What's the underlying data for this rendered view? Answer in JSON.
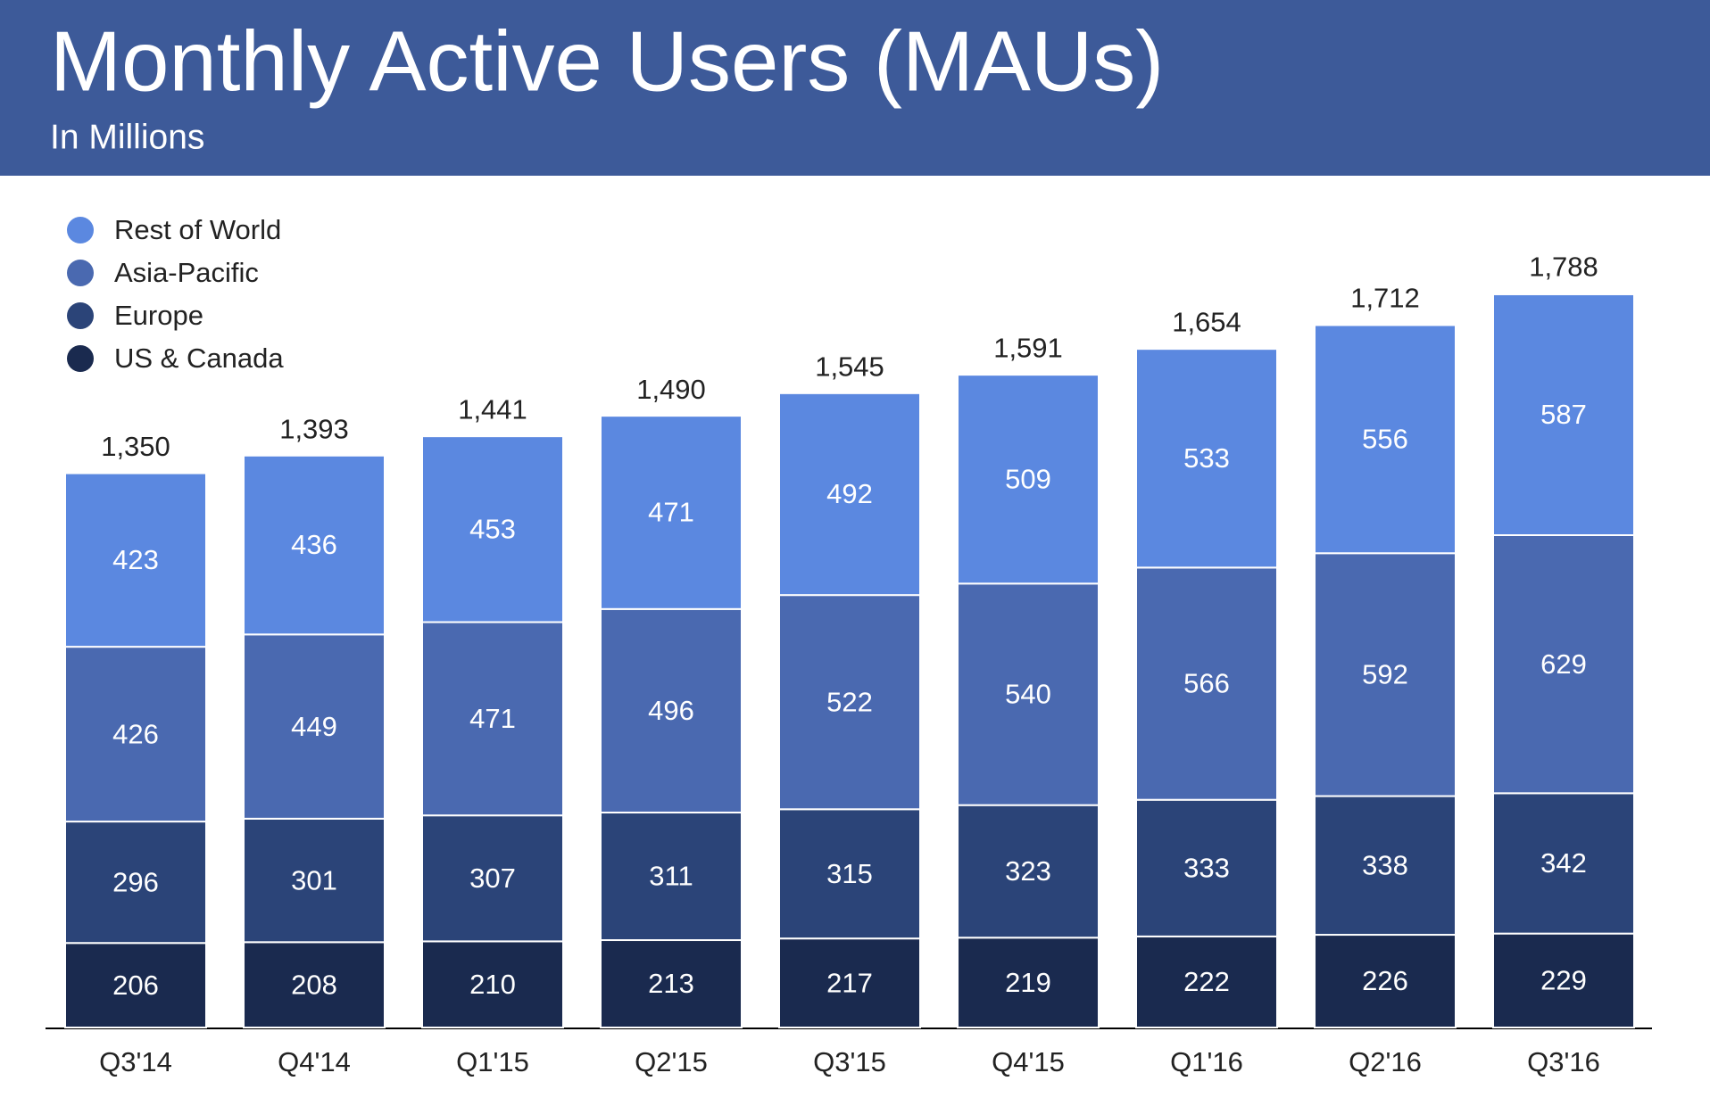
{
  "chart_data": {
    "type": "stacked_bar",
    "title": "Monthly Active Users (MAUs)",
    "subtitle": "In Millions",
    "categories": [
      "Q3'14",
      "Q4'14",
      "Q1'15",
      "Q2'15",
      "Q3'15",
      "Q4'15",
      "Q1'16",
      "Q2'16",
      "Q3'16"
    ],
    "series": [
      {
        "name": "US & Canada",
        "color": "#1a2a4f",
        "values": [
          206,
          208,
          210,
          213,
          217,
          219,
          222,
          226,
          229
        ]
      },
      {
        "name": "Europe",
        "color": "#2b4478",
        "values": [
          296,
          301,
          307,
          311,
          315,
          323,
          333,
          338,
          342
        ]
      },
      {
        "name": "Asia-Pacific",
        "color": "#4a69b0",
        "values": [
          426,
          449,
          471,
          496,
          522,
          540,
          566,
          592,
          629
        ]
      },
      {
        "name": "Rest of World",
        "color": "#5b88e0",
        "values": [
          423,
          436,
          453,
          471,
          492,
          509,
          533,
          556,
          587
        ]
      }
    ],
    "totals": {
      "values": [
        1350,
        1393,
        1441,
        1490,
        1545,
        1591,
        1654,
        1712,
        1788
      ],
      "value_labels": [
        "1,350",
        "1,393",
        "1,441",
        "1,490",
        "1,545",
        "1,591",
        "1,654",
        "1,712",
        "1,788"
      ]
    },
    "legend": "top-left"
  }
}
